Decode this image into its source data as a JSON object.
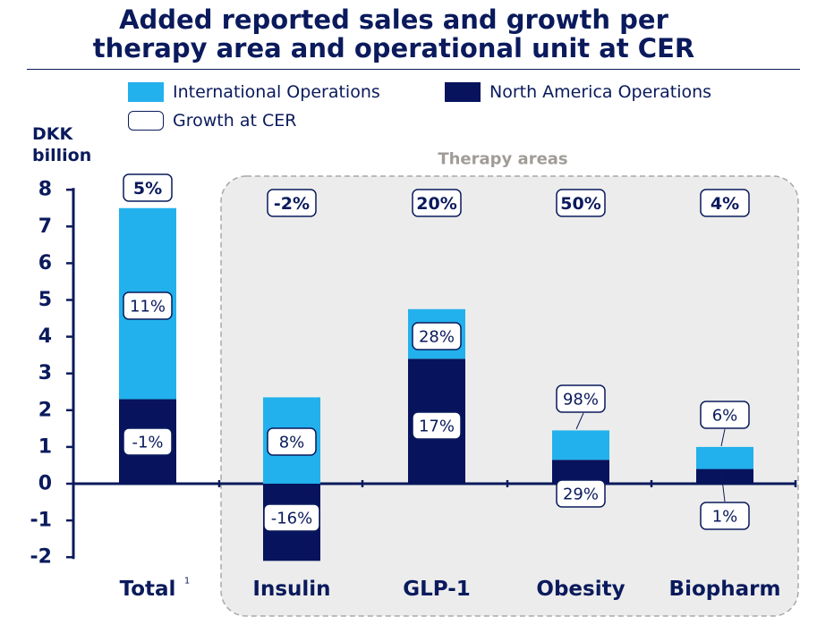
{
  "title": {
    "line1": "Added reported sales and growth per",
    "line2": "therapy area and operational unit at CER"
  },
  "legend": {
    "international": "International Operations",
    "north_america": "North America Operations",
    "growth": "Growth at CER"
  },
  "colors": {
    "international": "#22b1ec",
    "north_america": "#07135c",
    "title": "#0a1a5c",
    "therapy_panel": "#ececec",
    "therapy_label": "#a09c98"
  },
  "chart_data": {
    "type": "bar",
    "stacked": true,
    "ylabel": "DKK billion",
    "ylim": [
      -2,
      8
    ],
    "yticks": [
      -2,
      -1,
      0,
      1,
      2,
      3,
      4,
      5,
      6,
      7,
      8
    ],
    "categories": [
      "Total",
      "Insulin",
      "GLP-1",
      "Obesity",
      "Biopharm"
    ],
    "category_footnote": {
      "Total": "1"
    },
    "group_label": "Therapy areas",
    "series": [
      {
        "name": "North America Operations",
        "values": [
          2.3,
          -2.1,
          3.4,
          0.65,
          0.4
        ],
        "growth_labels": [
          "-1%",
          "-16%",
          "17%",
          "29%",
          "1%"
        ]
      },
      {
        "name": "International Operations",
        "values": [
          5.2,
          2.35,
          1.35,
          0.8,
          0.6
        ],
        "growth_labels": [
          "11%",
          "8%",
          "28%",
          "98%",
          "6%"
        ]
      }
    ],
    "total_growth": [
      "5%",
      "-2%",
      "20%",
      "50%",
      "4%"
    ]
  }
}
